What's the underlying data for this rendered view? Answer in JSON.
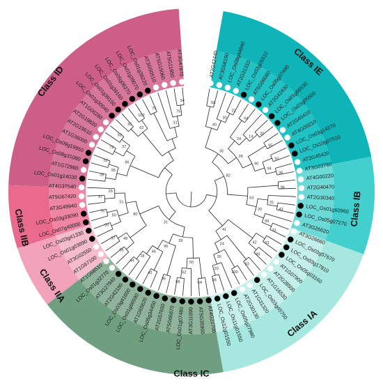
{
  "classes": [
    {
      "id": "ie",
      "label": "Class IE",
      "start": 10,
      "end": 79,
      "outer": "#0fb4b8",
      "inner": "#21c2c4",
      "labelAngle": 42,
      "labelR": 250
    },
    {
      "id": "ib",
      "label": "Class IB",
      "start": 79,
      "end": 110,
      "outer": "#42cfcd",
      "inner": "#6ddad8",
      "labelAngle": 96,
      "labelR": 238
    },
    {
      "id": "ia",
      "label": "Class IA",
      "start": 110,
      "end": 170,
      "outer": "#a6e8df",
      "inner": "#c5f0ea",
      "labelAngle": 140,
      "labelR": 248
    },
    {
      "id": "ic",
      "label": "Class  IC",
      "start": 170,
      "end": 232,
      "outer": "#6f9f80",
      "inner": "#8fb49b",
      "labelAngle": 180,
      "labelR": 262
    },
    {
      "id": "iia",
      "label": "Class IIA",
      "start": 232,
      "end": 252,
      "outer": "#f2a3b9",
      "inner": "#f6bccb",
      "labelAngle": 236,
      "labelR": 242
    },
    {
      "id": "iib",
      "label": "Class IIB",
      "start": 252,
      "end": 272,
      "outer": "#e96a8d",
      "inner": "#ee86a3",
      "labelAngle": 258,
      "labelR": 250
    },
    {
      "id": "id",
      "label": "Class ID",
      "start": 272,
      "end": 356,
      "outer": "#cc5e88",
      "inner": "#d77799",
      "labelAngle": 308,
      "labelR": 256
    }
  ],
  "leaves": [
    {
      "label": "AT2G42440",
      "marker": "white"
    },
    {
      "label": "AT3G58190",
      "marker": "white"
    },
    {
      "label": "LOC_Os08g44840",
      "marker": "white"
    },
    {
      "label": "AT2G31310",
      "marker": "white"
    },
    {
      "label": "LOC_Os03g05510",
      "marker": "black"
    },
    {
      "label": "AT5G06080",
      "marker": "white"
    },
    {
      "label": "LOC_Os05g07490",
      "marker": "black"
    },
    {
      "label": "AT2G42430",
      "marker": "white"
    },
    {
      "label": "LOC_Os01g66530",
      "marker": "black"
    },
    {
      "label": "LOC_Os03g05500",
      "marker": "black"
    },
    {
      "label": "AT2G45410",
      "marker": "white"
    },
    {
      "label": "AT4G00210",
      "marker": "white"
    },
    {
      "label": "LOC_Os03g14270",
      "marker": "black"
    },
    {
      "label": "LOC_Os10g07510",
      "marker": "black"
    },
    {
      "label": "AT2G45420",
      "marker": "white"
    },
    {
      "label": "AT3G03760",
      "marker": "white"
    },
    {
      "label": "AT4G00220",
      "marker": "white"
    },
    {
      "label": "AT2G40470",
      "marker": "white"
    },
    {
      "label": "AT2G30340",
      "marker": "white"
    },
    {
      "label": "LOC_Os01g60960",
      "marker": "black"
    },
    {
      "label": "LOC_Os05g07270",
      "marker": "black"
    },
    {
      "label": "AT3G26620",
      "marker": "white"
    },
    {
      "label": "AT3G26660",
      "marker": "white"
    },
    {
      "label": "LOC_Os03g57670",
      "marker": "black"
    },
    {
      "label": "LOC_Os03g17810",
      "marker": "black"
    },
    {
      "label": "LOC_Os05g03160",
      "marker": "black"
    },
    {
      "label": "AT1G07900",
      "marker": "white"
    },
    {
      "label": "AT2G28500",
      "marker": "white"
    },
    {
      "label": "AT1G16530",
      "marker": "white"
    },
    {
      "label": "LOC_Os03g45750",
      "marker": "black"
    },
    {
      "label": "AT1G31320",
      "marker": "white"
    },
    {
      "label": "AT2G30130",
      "marker": "white"
    },
    {
      "label": "LOC_Os05g27980",
      "marker": "black"
    },
    {
      "label": "LOC_Os11g01550",
      "marker": "black"
    },
    {
      "label": "LOC_Os12g01550",
      "marker": "black"
    },
    {
      "label": "AT4G22700",
      "marker": "black"
    },
    {
      "label": "AT5G35900",
      "marker": "black"
    },
    {
      "label": "AT3G11090",
      "marker": "black"
    },
    {
      "label": "LOC_Os01g07480",
      "marker": "black"
    },
    {
      "label": "AT5G66870",
      "marker": "black"
    },
    {
      "label": "AT2G57650",
      "marker": "black"
    },
    {
      "label": "LOC_Os05g34450",
      "marker": "black"
    },
    {
      "label": "AT1G65620",
      "marker": "black"
    },
    {
      "label": "LOC_Os01g66590",
      "marker": "black"
    },
    {
      "label": "LOC_Os03g41600",
      "marker": "black"
    },
    {
      "label": "AT2G42180",
      "marker": "black"
    },
    {
      "label": "AT3G27940",
      "marker": "black"
    },
    {
      "label": "LOC_Os01g32770",
      "marker": "white"
    },
    {
      "label": "AT1G68510",
      "marker": "white"
    },
    {
      "label": "AT1G67100",
      "marker": "white"
    },
    {
      "label": "AT3G02550",
      "marker": "white"
    },
    {
      "label": "LOC_Os01g03890",
      "marker": "black"
    },
    {
      "label": "LOC_Os03g41330",
      "marker": "black"
    },
    {
      "label": "LOC_Os07g40000",
      "marker": "black"
    },
    {
      "label": "LOC_Os03g33090",
      "marker": "black"
    },
    {
      "label": "AT3G49940",
      "marker": "white"
    },
    {
      "label": "AT5G67420",
      "marker": "white"
    },
    {
      "label": "AT4G37540",
      "marker": "white"
    },
    {
      "label": "LOC_Os01g14030",
      "marker": "black"
    },
    {
      "label": "AT1G72980",
      "marker": "white"
    },
    {
      "label": "LOC_Os08g31080",
      "marker": "black"
    },
    {
      "label": "LOC_Os09g19950",
      "marker": "black"
    },
    {
      "label": "AT1G36000",
      "marker": "white"
    },
    {
      "label": "AT2G19510",
      "marker": "white"
    },
    {
      "label": "AT2G19820",
      "marker": "white"
    },
    {
      "label": "AT1G06280",
      "marker": "white"
    },
    {
      "label": "LOC_Os01g30040",
      "marker": "black"
    },
    {
      "label": "LOC_Os01g39150",
      "marker": "black"
    },
    {
      "label": "LOC_Os01g39160",
      "marker": "black"
    },
    {
      "label": "LOC_Os05g06270",
      "marker": "black"
    },
    {
      "label": "LOC_Os01g39070",
      "marker": "black"
    },
    {
      "label": "LOC_Os01g38220",
      "marker": "black"
    },
    {
      "label": "AT3G50510",
      "marker": "white"
    },
    {
      "label": "AT5G15060",
      "marker": "white"
    },
    {
      "label": "AT5G11850",
      "marker": "white"
    },
    {
      "label": "AT3G47870",
      "marker": "white"
    }
  ],
  "bootstrap": [
    "58",
    "22",
    "30",
    "40",
    "64",
    "20",
    "14",
    "24",
    "95",
    "93",
    "36",
    "94",
    "90",
    "28",
    "35",
    "96",
    "43",
    "31",
    "31",
    "99",
    "20",
    "63",
    "82",
    "53",
    "99",
    "42",
    "93",
    "100",
    "38",
    "20",
    "26",
    "24",
    "41",
    "64",
    "68",
    "62",
    "50",
    "36",
    "42",
    "44",
    "18",
    "46",
    "96",
    "39",
    "56",
    "57",
    "49",
    "39",
    "76",
    "50",
    "97",
    "29",
    "51",
    "80",
    "31",
    "35",
    "52",
    "95",
    "72",
    "52",
    "37",
    "86",
    "35",
    "100",
    "62",
    "75",
    "94",
    "75",
    "31"
  ]
}
